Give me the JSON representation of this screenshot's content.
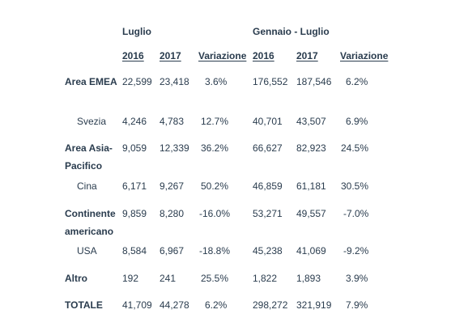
{
  "header": {
    "group_july": "Luglio",
    "group_jan_july": "Gennaio - Luglio",
    "col_2016": "2016",
    "col_2017": "2017",
    "col_variazione": "Variazione"
  },
  "rows": [
    {
      "label": "Area EMEA",
      "v1": "22,599",
      "v2": "23,418",
      "v3": "3.6%",
      "v4": "176,552",
      "v5": "187,546",
      "v6": "6.2%"
    },
    {
      "label": "Svezia",
      "v1": "4,246",
      "v2": "4,783",
      "v3": "12.7%",
      "v4": "40,701",
      "v5": "43,507",
      "v6": "6.9%"
    },
    {
      "label": "Area Asia-Pacifico",
      "v1": "9,059",
      "v2": "12,339",
      "v3": "36.2%",
      "v4": "66,627",
      "v5": "82,923",
      "v6": "24.5%"
    },
    {
      "label": "Cina",
      "v1": "6,171",
      "v2": "9,267",
      "v3": "50.2%",
      "v4": "46,859",
      "v5": "61,181",
      "v6": "30.5%"
    },
    {
      "label": "Continente americano",
      "v1": "9,859",
      "v2": "8,280",
      "v3": "-16.0%",
      "v4": "53,271",
      "v5": "49,557",
      "v6": "-7.0%"
    },
    {
      "label": "USA",
      "v1": "8,584",
      "v2": "6,967",
      "v3": "-18.8%",
      "v4": "45,238",
      "v5": "41,069",
      "v6": "-9.2%"
    },
    {
      "label": "Altro",
      "v1": "192",
      "v2": "241",
      "v3": "25.5%",
      "v4": "1,822",
      "v5": "1,893",
      "v6": "3.9%"
    },
    {
      "label": "TOTALE",
      "v1": "41,709",
      "v2": "44,278",
      "v3": "6.2%",
      "v4": "298,272",
      "v5": "321,919",
      "v6": "7.9%"
    }
  ]
}
